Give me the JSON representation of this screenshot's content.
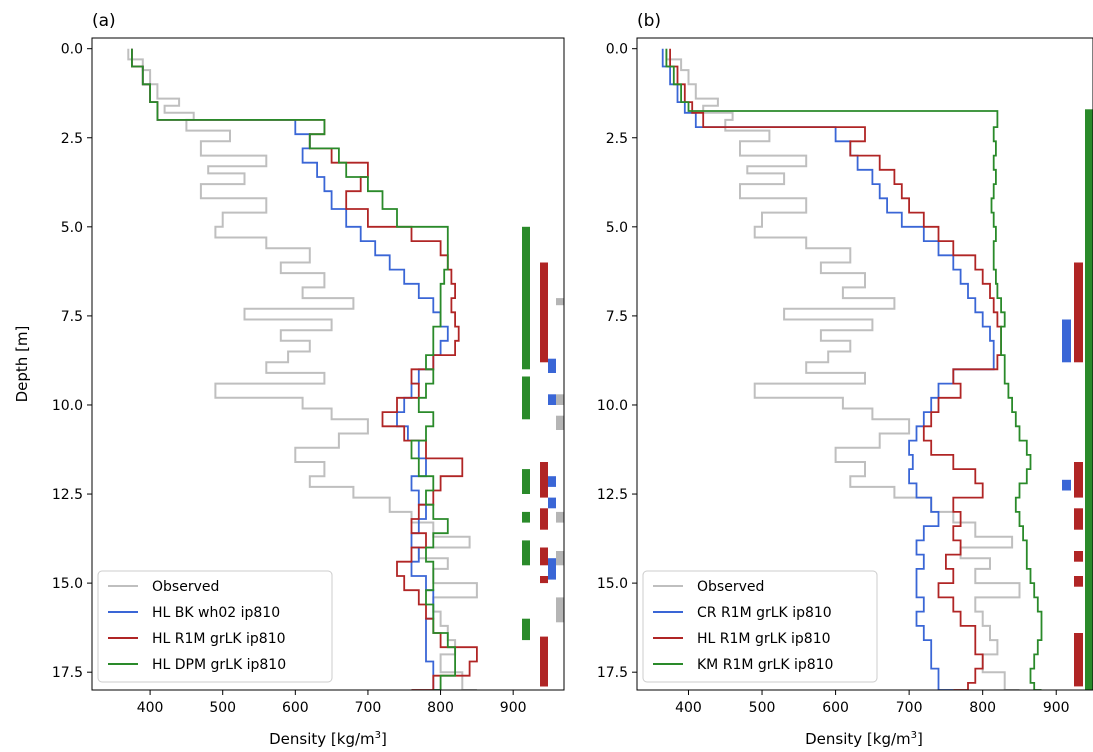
{
  "chart_data": [
    {
      "panel_label": "(a)",
      "type": "line",
      "xlabel": "Density [kg/m$^3$]",
      "ylabel": "Depth [m]",
      "xlim": [
        320,
        970
      ],
      "ylim": [
        18.0,
        -0.3
      ],
      "y_inverted": true,
      "xticks": [
        400,
        500,
        600,
        700,
        800,
        900
      ],
      "xticklabels": [
        "400",
        "500",
        "600",
        "700",
        "800",
        "900"
      ],
      "yticks": [
        0.0,
        2.5,
        5.0,
        7.5,
        10.0,
        12.5,
        15.0,
        17.5
      ],
      "yticklabels": [
        "0.0",
        "2.5",
        "5.0",
        "7.5",
        "10.0",
        "12.5",
        "15.0",
        "17.5"
      ],
      "grid": false,
      "legend_placement": "lower-left",
      "series": [
        {
          "name": "Observed",
          "color": "#bfbfbf",
          "step": true,
          "depth": [
            0,
            0.3,
            0.6,
            1.0,
            1.4,
            1.6,
            1.8,
            2.0,
            2.3,
            2.6,
            3.0,
            3.3,
            3.5,
            3.8,
            4.2,
            4.6,
            5.0,
            5.3,
            5.6,
            6.0,
            6.3,
            6.7,
            7.0,
            7.3,
            7.6,
            7.9,
            8.2,
            8.5,
            8.8,
            9.1,
            9.4,
            9.8,
            10.1,
            10.4,
            10.8,
            11.2,
            11.6,
            12.0,
            12.3,
            12.6,
            13.0,
            13.3,
            13.7,
            14.0,
            14.3,
            14.6,
            15.0,
            15.4,
            15.8,
            16.2,
            16.6,
            17.0,
            17.5,
            18.0
          ],
          "values": [
            370,
            390,
            400,
            410,
            440,
            420,
            460,
            450,
            510,
            470,
            560,
            480,
            530,
            470,
            560,
            500,
            490,
            560,
            620,
            580,
            640,
            610,
            680,
            530,
            650,
            580,
            620,
            590,
            560,
            640,
            490,
            610,
            650,
            700,
            660,
            600,
            640,
            620,
            680,
            730,
            760,
            790,
            840,
            770,
            810,
            790,
            850,
            790,
            800,
            810,
            820,
            800,
            830,
            850
          ]
        },
        {
          "name": "HL BK wh02 ip810",
          "color": "#3a66d6",
          "step": true,
          "depth": [
            0,
            0.5,
            1.0,
            1.5,
            2.0,
            2.4,
            2.8,
            3.2,
            3.6,
            4.0,
            4.5,
            5.0,
            5.4,
            5.8,
            6.2,
            6.6,
            7.0,
            7.4,
            7.8,
            8.2,
            8.6,
            9.0,
            9.4,
            9.8,
            10.2,
            10.6,
            11.0,
            11.5,
            12.0,
            12.4,
            12.8,
            13.2,
            13.6,
            14.0,
            14.4,
            14.8,
            15.2,
            15.6,
            16.0,
            16.4,
            16.8,
            17.2,
            17.6,
            18.0
          ],
          "values": [
            375,
            390,
            400,
            410,
            600,
            620,
            610,
            630,
            640,
            650,
            670,
            690,
            710,
            730,
            750,
            770,
            790,
            800,
            810,
            800,
            790,
            770,
            760,
            750,
            740,
            755,
            770,
            780,
            760,
            770,
            780,
            770,
            760,
            770,
            760,
            780,
            790,
            790,
            780,
            780,
            780,
            790,
            790,
            800
          ]
        },
        {
          "name": "HL R1M grLK ip810",
          "color": "#b02525",
          "step": true,
          "depth": [
            0,
            0.5,
            1.0,
            1.5,
            2.0,
            2.4,
            2.8,
            3.2,
            3.6,
            4.0,
            4.5,
            5.0,
            5.4,
            5.8,
            6.2,
            6.6,
            7.0,
            7.4,
            7.8,
            8.2,
            8.6,
            9.0,
            9.4,
            9.8,
            10.2,
            10.6,
            11.0,
            11.5,
            12.0,
            12.4,
            12.8,
            13.2,
            13.6,
            14.0,
            14.4,
            14.8,
            15.2,
            15.6,
            16.0,
            16.4,
            16.8,
            17.2,
            17.6,
            18.0
          ],
          "values": [
            375,
            390,
            400,
            410,
            640,
            620,
            650,
            700,
            690,
            670,
            700,
            760,
            800,
            810,
            815,
            820,
            815,
            820,
            825,
            820,
            790,
            760,
            770,
            740,
            720,
            750,
            780,
            830,
            800,
            790,
            770,
            760,
            780,
            760,
            740,
            750,
            770,
            780,
            790,
            800,
            850,
            840,
            790,
            760
          ]
        },
        {
          "name": "HL DPM grLK ip810",
          "color": "#2a8a2a",
          "step": true,
          "depth": [
            0,
            0.5,
            1.0,
            1.5,
            2.0,
            2.4,
            2.8,
            3.2,
            3.6,
            4.0,
            4.5,
            5.0,
            5.4,
            5.8,
            6.2,
            6.6,
            7.0,
            7.4,
            7.8,
            8.2,
            8.6,
            9.0,
            9.4,
            9.8,
            10.2,
            10.6,
            11.0,
            11.5,
            12.0,
            12.4,
            12.8,
            13.2,
            13.6,
            14.0,
            14.4,
            14.8,
            15.2,
            15.6,
            16.0,
            16.4,
            16.8,
            17.2,
            17.6,
            18.0
          ],
          "values": [
            375,
            390,
            400,
            410,
            640,
            620,
            660,
            670,
            700,
            720,
            740,
            810,
            810,
            810,
            805,
            800,
            800,
            800,
            790,
            790,
            780,
            790,
            780,
            770,
            790,
            780,
            760,
            770,
            790,
            780,
            790,
            810,
            790,
            780,
            790,
            790,
            780,
            790,
            790,
            810,
            820,
            820,
            800,
            790
          ]
        }
      ],
      "side_markers": [
        {
          "color": "#2a8a2a",
          "intervals": [
            [
              5.0,
              9.0
            ],
            [
              9.2,
              10.4
            ],
            [
              11.8,
              12.5
            ],
            [
              13.0,
              13.3
            ],
            [
              13.8,
              14.5
            ],
            [
              16.0,
              16.6
            ]
          ]
        },
        {
          "color": "#b02525",
          "intervals": [
            [
              6.0,
              8.8
            ],
            [
              11.6,
              12.6
            ],
            [
              12.9,
              13.5
            ],
            [
              14.0,
              14.5
            ],
            [
              14.8,
              15.0
            ],
            [
              16.5,
              17.9
            ]
          ]
        },
        {
          "color": "#3a66d6",
          "intervals": [
            [
              8.7,
              9.1
            ],
            [
              9.7,
              10.0
            ],
            [
              12.0,
              12.3
            ],
            [
              12.6,
              12.9
            ],
            [
              14.3,
              14.9
            ]
          ]
        },
        {
          "color": "#b5b5b5",
          "intervals": [
            [
              7.0,
              7.2
            ],
            [
              9.7,
              10.0
            ],
            [
              10.3,
              10.7
            ],
            [
              13.0,
              13.3
            ],
            [
              14.1,
              14.5
            ],
            [
              15.4,
              16.1
            ]
          ]
        }
      ],
      "legend": [
        "Observed",
        "HL BK wh02 ip810",
        "HL R1M grLK ip810",
        "HL DPM grLK ip810"
      ]
    },
    {
      "panel_label": "(b)",
      "type": "line",
      "xlabel": "Density [kg/m$^3$]",
      "ylabel": "",
      "xlim": [
        330,
        950
      ],
      "ylim": [
        18.0,
        -0.3
      ],
      "y_inverted": true,
      "xticks": [
        400,
        500,
        600,
        700,
        800,
        900
      ],
      "xticklabels": [
        "400",
        "500",
        "600",
        "700",
        "800",
        "900"
      ],
      "yticks": [
        0.0,
        2.5,
        5.0,
        7.5,
        10.0,
        12.5,
        15.0,
        17.5
      ],
      "yticklabels": [
        "0.0",
        "2.5",
        "5.0",
        "7.5",
        "10.0",
        "12.5",
        "15.0",
        "17.5"
      ],
      "grid": false,
      "legend_placement": "lower-left",
      "series": [
        {
          "name": "Observed",
          "color": "#bfbfbf",
          "step": true,
          "depth": [
            0,
            0.3,
            0.6,
            1.0,
            1.4,
            1.6,
            1.8,
            2.0,
            2.3,
            2.6,
            3.0,
            3.3,
            3.5,
            3.8,
            4.2,
            4.6,
            5.0,
            5.3,
            5.6,
            6.0,
            6.3,
            6.7,
            7.0,
            7.3,
            7.6,
            7.9,
            8.2,
            8.5,
            8.8,
            9.1,
            9.4,
            9.8,
            10.1,
            10.4,
            10.8,
            11.2,
            11.6,
            12.0,
            12.3,
            12.6,
            13.0,
            13.3,
            13.7,
            14.0,
            14.3,
            14.6,
            15.0,
            15.4,
            15.8,
            16.2,
            16.6,
            17.0,
            17.5,
            18.0
          ],
          "values": [
            370,
            390,
            400,
            410,
            440,
            420,
            460,
            450,
            510,
            470,
            560,
            480,
            530,
            470,
            560,
            500,
            490,
            560,
            620,
            580,
            640,
            610,
            680,
            530,
            650,
            580,
            620,
            590,
            560,
            640,
            490,
            610,
            650,
            700,
            660,
            600,
            640,
            620,
            680,
            730,
            760,
            790,
            840,
            770,
            810,
            790,
            850,
            790,
            800,
            810,
            820,
            800,
            830,
            850
          ]
        },
        {
          "name": "CR R1M grLK ip810",
          "color": "#3a66d6",
          "step": true,
          "depth": [
            0,
            0.5,
            1.0,
            1.5,
            1.8,
            2.2,
            2.6,
            3.0,
            3.4,
            3.8,
            4.2,
            4.6,
            5.0,
            5.4,
            5.8,
            6.2,
            6.6,
            7.0,
            7.4,
            7.8,
            8.2,
            8.6,
            9.0,
            9.4,
            9.8,
            10.2,
            10.6,
            11.0,
            11.4,
            11.8,
            12.2,
            12.6,
            13.0,
            13.4,
            13.8,
            14.2,
            14.6,
            15.0,
            15.4,
            15.8,
            16.2,
            16.6,
            17.0,
            17.4,
            17.8,
            18.0
          ],
          "values": [
            365,
            375,
            385,
            395,
            410,
            600,
            620,
            630,
            650,
            660,
            670,
            690,
            720,
            740,
            760,
            770,
            780,
            790,
            800,
            810,
            815,
            815,
            760,
            740,
            730,
            720,
            710,
            700,
            705,
            700,
            710,
            730,
            740,
            720,
            710,
            720,
            710,
            710,
            720,
            710,
            720,
            730,
            730,
            740,
            740,
            760
          ]
        },
        {
          "name": "HL R1M grLK ip810",
          "color": "#b02525",
          "step": true,
          "depth": [
            0,
            0.5,
            1.0,
            1.5,
            1.8,
            2.2,
            2.6,
            3.0,
            3.4,
            3.8,
            4.2,
            4.6,
            5.0,
            5.4,
            5.8,
            6.2,
            6.6,
            7.0,
            7.4,
            7.8,
            8.2,
            8.6,
            9.0,
            9.4,
            9.8,
            10.2,
            10.6,
            11.0,
            11.4,
            11.8,
            12.2,
            12.6,
            13.0,
            13.4,
            13.8,
            14.2,
            14.6,
            15.0,
            15.4,
            15.8,
            16.2,
            16.6,
            17.0,
            17.4,
            17.8,
            18.0
          ],
          "values": [
            375,
            385,
            395,
            405,
            420,
            640,
            620,
            660,
            680,
            690,
            700,
            720,
            740,
            760,
            790,
            800,
            810,
            815,
            820,
            825,
            825,
            820,
            760,
            770,
            740,
            730,
            720,
            730,
            760,
            790,
            800,
            760,
            770,
            760,
            770,
            750,
            760,
            740,
            760,
            770,
            790,
            790,
            800,
            790,
            780,
            760
          ]
        },
        {
          "name": "KM R1M grLK ip810",
          "color": "#2a8a2a",
          "step": true,
          "depth": [
            0,
            0.5,
            1.0,
            1.5,
            1.75,
            2.2,
            2.6,
            3.0,
            3.4,
            3.8,
            4.2,
            4.6,
            5.0,
            5.4,
            5.8,
            6.2,
            6.6,
            7.0,
            7.4,
            7.8,
            8.2,
            8.6,
            9.0,
            9.4,
            9.8,
            10.2,
            10.6,
            11.0,
            11.4,
            11.8,
            12.2,
            12.6,
            13.0,
            13.4,
            13.8,
            14.2,
            14.6,
            15.0,
            15.4,
            15.8,
            16.2,
            16.6,
            17.0,
            17.4,
            17.8,
            18.0
          ],
          "values": [
            370,
            380,
            390,
            400,
            820,
            815,
            818,
            815,
            818,
            815,
            812,
            815,
            818,
            815,
            815,
            818,
            820,
            825,
            830,
            825,
            825,
            830,
            830,
            835,
            840,
            845,
            850,
            860,
            865,
            860,
            850,
            845,
            850,
            855,
            860,
            860,
            865,
            870,
            875,
            880,
            880,
            875,
            870,
            865,
            870,
            880
          ]
        }
      ],
      "side_markers": [
        {
          "color": "#2a8a2a",
          "intervals": [
            [
              1.7,
              18.0
            ]
          ]
        },
        {
          "color": "#b02525",
          "intervals": [
            [
              6.0,
              8.8
            ],
            [
              11.6,
              12.6
            ],
            [
              12.9,
              13.5
            ],
            [
              14.1,
              14.4
            ],
            [
              14.8,
              15.1
            ],
            [
              16.4,
              17.9
            ]
          ]
        },
        {
          "color": "#3a66d6",
          "intervals": [
            [
              7.6,
              8.8
            ],
            [
              12.1,
              12.4
            ]
          ]
        }
      ],
      "legend": [
        "Observed",
        "CR R1M grLK ip810",
        "HL R1M grLK ip810",
        "KM R1M grLK ip810"
      ]
    }
  ]
}
